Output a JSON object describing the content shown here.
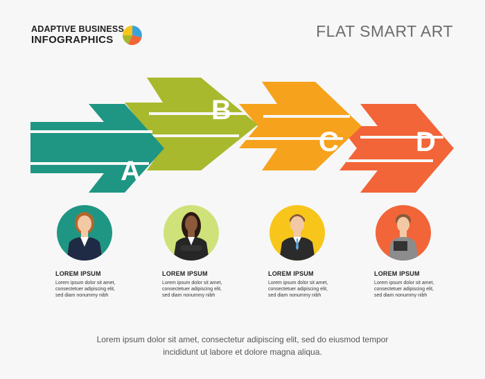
{
  "header": {
    "brand_line1": "ADAPTIVE BUSINESS",
    "brand_line2": "INFOGRAPHICS",
    "title": "FLAT SMART ART"
  },
  "colors": {
    "teal": "#1f9683",
    "olive": "#a8b92d",
    "orange": "#f6a21c",
    "red_orange": "#f26538",
    "yellow": "#f8c51a",
    "light_green": "#cfe27a"
  },
  "steps": [
    {
      "letter": "A",
      "color": "#1f9683"
    },
    {
      "letter": "B",
      "color": "#a8b92d"
    },
    {
      "letter": "C",
      "color": "#f6a21c"
    },
    {
      "letter": "D",
      "color": "#f26538"
    }
  ],
  "people": [
    {
      "name": "LOREM IPSUM",
      "desc1": "Lorem ipsum dolor sit amet,",
      "desc2": "consectetuer adipiscing elit,",
      "desc3": "sed diam nonummy nibh",
      "circle": "#1f9683"
    },
    {
      "name": "LOREM IPSUM",
      "desc1": "Lorem ipsum dolor sit amet,",
      "desc2": "consectetuer adipiscing elit,",
      "desc3": "sed diam nonummy nibh",
      "circle": "#cfe27a"
    },
    {
      "name": "LOREM IPSUM",
      "desc1": "Lorem ipsum dolor sit amet,",
      "desc2": "consectetuer adipiscing elit,",
      "desc3": "sed diam nonummy nibh",
      "circle": "#f8c51a"
    },
    {
      "name": "LOREM IPSUM",
      "desc1": "Lorem ipsum dolor sit amet,",
      "desc2": "consectetuer adipiscing elit,",
      "desc3": "sed diam nonummy nibh",
      "circle": "#f26538"
    }
  ],
  "footer": {
    "line1": "Lorem ipsum dolor sit amet, consectetur adipiscing elit, sed do eiusmod tempor",
    "line2": "incididunt ut labore et dolore magna aliqua."
  }
}
